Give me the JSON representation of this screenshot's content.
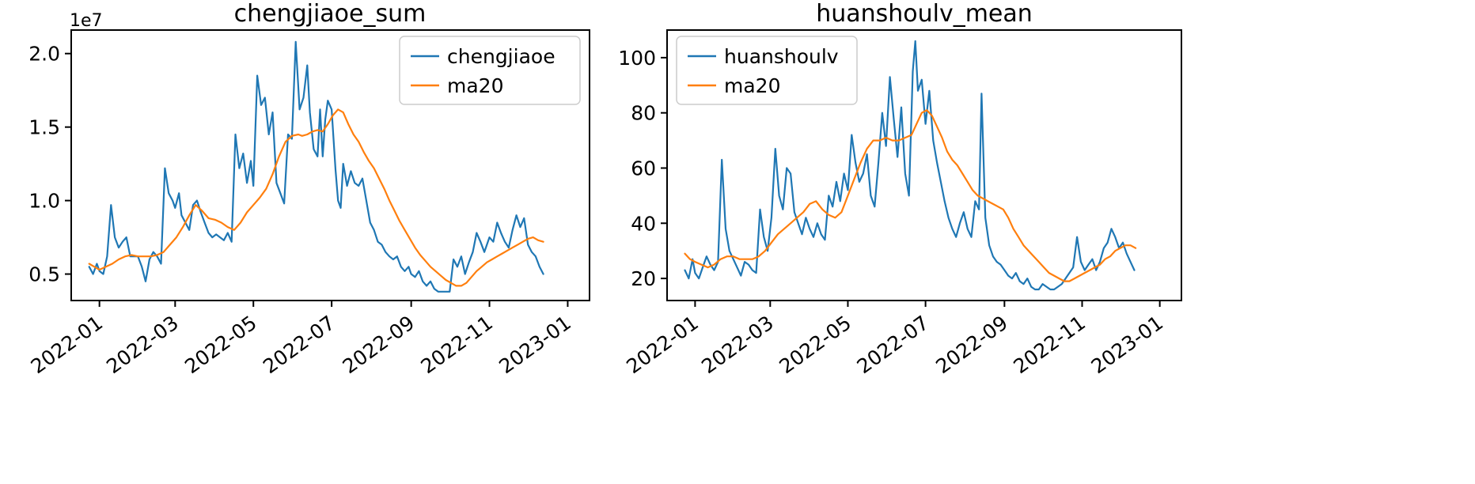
{
  "figure": {
    "background": "#ffffff"
  },
  "colors": {
    "blue": "#1f77b4",
    "orange": "#ff7f0e"
  },
  "chart_data": [
    {
      "type": "line",
      "title": "chengjiaoe_sum",
      "y_offset_label": "1e7",
      "y_unit": "1e7",
      "xlabel": "",
      "ylabel": "",
      "grid": false,
      "legend_loc": "upper-right",
      "xlim": [
        -22,
        382
      ],
      "ylim": [
        0.32,
        2.16
      ],
      "y_ticks": [
        0.5,
        1.0,
        1.5,
        2.0
      ],
      "y_tick_labels": [
        "0.5",
        "1.0",
        "1.5",
        "2.0"
      ],
      "x_ticks": [
        {
          "day": 0,
          "label": "2022-01"
        },
        {
          "day": 59,
          "label": "2022-03"
        },
        {
          "day": 120,
          "label": "2022-05"
        },
        {
          "day": 181,
          "label": "2022-07"
        },
        {
          "day": 243,
          "label": "2022-09"
        },
        {
          "day": 304,
          "label": "2022-11"
        },
        {
          "day": 365,
          "label": "2023-01"
        }
      ],
      "series": [
        {
          "name": "chengjiaoe",
          "color": "#1f77b4",
          "x": [
            -8,
            -5,
            -2,
            0,
            3,
            6,
            9,
            12,
            15,
            18,
            21,
            24,
            27,
            30,
            33,
            36,
            39,
            42,
            45,
            48,
            51,
            54,
            57,
            59,
            62,
            64,
            67,
            70,
            73,
            76,
            79,
            82,
            85,
            88,
            91,
            94,
            97,
            100,
            103,
            106,
            109,
            112,
            115,
            118,
            120,
            123,
            126,
            129,
            132,
            135,
            138,
            141,
            144,
            147,
            150,
            153,
            156,
            159,
            162,
            164,
            167,
            170,
            172,
            174,
            176,
            178,
            181,
            184,
            186,
            188,
            190,
            193,
            196,
            199,
            202,
            205,
            208,
            211,
            214,
            217,
            220,
            223,
            226,
            229,
            232,
            235,
            238,
            241,
            243,
            246,
            249,
            252,
            255,
            258,
            261,
            264,
            267,
            270,
            273,
            276,
            279,
            282,
            285,
            288,
            291,
            294,
            297,
            300,
            304,
            307,
            310,
            313,
            316,
            319,
            322,
            325,
            328,
            331,
            334,
            337,
            340,
            343,
            346
          ],
          "y": [
            0.55,
            0.5,
            0.57,
            0.52,
            0.5,
            0.62,
            0.97,
            0.75,
            0.68,
            0.72,
            0.75,
            0.62,
            0.62,
            0.62,
            0.55,
            0.45,
            0.6,
            0.65,
            0.62,
            0.57,
            1.22,
            1.05,
            1.0,
            0.95,
            1.05,
            0.9,
            0.85,
            0.8,
            0.97,
            1.0,
            0.92,
            0.85,
            0.78,
            0.75,
            0.77,
            0.75,
            0.73,
            0.78,
            0.72,
            1.45,
            1.22,
            1.32,
            1.12,
            1.27,
            1.1,
            1.85,
            1.65,
            1.7,
            1.45,
            1.6,
            1.12,
            1.05,
            0.98,
            1.45,
            1.42,
            2.08,
            1.62,
            1.7,
            1.92,
            1.6,
            1.35,
            1.3,
            1.62,
            1.3,
            1.55,
            1.68,
            1.62,
            1.21,
            1.0,
            0.95,
            1.25,
            1.1,
            1.2,
            1.12,
            1.1,
            1.15,
            1.0,
            0.85,
            0.8,
            0.72,
            0.7,
            0.65,
            0.62,
            0.6,
            0.62,
            0.55,
            0.52,
            0.55,
            0.5,
            0.48,
            0.52,
            0.45,
            0.42,
            0.45,
            0.4,
            0.38,
            0.38,
            0.38,
            0.38,
            0.6,
            0.55,
            0.62,
            0.5,
            0.58,
            0.65,
            0.78,
            0.72,
            0.65,
            0.75,
            0.72,
            0.85,
            0.78,
            0.72,
            0.68,
            0.8,
            0.9,
            0.82,
            0.88,
            0.7,
            0.65,
            0.62,
            0.55,
            0.5
          ]
        },
        {
          "name": "ma20",
          "color": "#ff7f0e",
          "x": [
            -8,
            -4,
            0,
            5,
            10,
            15,
            20,
            25,
            30,
            35,
            40,
            45,
            50,
            55,
            60,
            65,
            70,
            75,
            80,
            85,
            90,
            95,
            100,
            105,
            110,
            115,
            120,
            125,
            130,
            135,
            140,
            145,
            150,
            155,
            158,
            162,
            166,
            170,
            174,
            178,
            182,
            186,
            190,
            194,
            198,
            202,
            206,
            210,
            214,
            218,
            222,
            226,
            230,
            234,
            238,
            242,
            246,
            250,
            254,
            258,
            262,
            266,
            270,
            274,
            278,
            282,
            286,
            290,
            294,
            298,
            302,
            306,
            310,
            314,
            318,
            322,
            326,
            330,
            334,
            338,
            342,
            346
          ],
          "y": [
            0.57,
            0.55,
            0.53,
            0.55,
            0.57,
            0.6,
            0.62,
            0.63,
            0.62,
            0.62,
            0.62,
            0.63,
            0.65,
            0.7,
            0.75,
            0.82,
            0.9,
            0.97,
            0.93,
            0.88,
            0.87,
            0.85,
            0.82,
            0.8,
            0.85,
            0.92,
            0.97,
            1.02,
            1.08,
            1.18,
            1.3,
            1.4,
            1.44,
            1.45,
            1.44,
            1.45,
            1.47,
            1.48,
            1.47,
            1.52,
            1.58,
            1.62,
            1.6,
            1.52,
            1.45,
            1.4,
            1.33,
            1.27,
            1.22,
            1.15,
            1.08,
            1.0,
            0.93,
            0.86,
            0.8,
            0.74,
            0.68,
            0.63,
            0.59,
            0.55,
            0.52,
            0.49,
            0.46,
            0.44,
            0.42,
            0.42,
            0.44,
            0.48,
            0.52,
            0.55,
            0.58,
            0.6,
            0.62,
            0.64,
            0.66,
            0.68,
            0.7,
            0.72,
            0.74,
            0.75,
            0.73,
            0.72
          ]
        }
      ]
    },
    {
      "type": "line",
      "title": "huanshoulv_mean",
      "y_offset_label": "",
      "xlabel": "",
      "ylabel": "",
      "grid": false,
      "legend_loc": "upper-left",
      "xlim": [
        -22,
        382
      ],
      "ylim": [
        12,
        110
      ],
      "y_ticks": [
        20,
        40,
        60,
        80,
        100
      ],
      "y_tick_labels": [
        "20",
        "40",
        "60",
        "80",
        "100"
      ],
      "x_ticks": [
        {
          "day": 0,
          "label": "2022-01"
        },
        {
          "day": 59,
          "label": "2022-03"
        },
        {
          "day": 120,
          "label": "2022-05"
        },
        {
          "day": 181,
          "label": "2022-07"
        },
        {
          "day": 243,
          "label": "2022-09"
        },
        {
          "day": 304,
          "label": "2022-11"
        },
        {
          "day": 365,
          "label": "2023-01"
        }
      ],
      "series": [
        {
          "name": "huanshoulv",
          "color": "#1f77b4",
          "x": [
            -8,
            -5,
            -2,
            0,
            3,
            6,
            9,
            12,
            15,
            18,
            21,
            24,
            27,
            30,
            33,
            36,
            39,
            42,
            45,
            48,
            51,
            54,
            57,
            60,
            63,
            66,
            69,
            72,
            75,
            78,
            81,
            84,
            87,
            90,
            93,
            96,
            99,
            102,
            105,
            108,
            111,
            114,
            117,
            120,
            123,
            126,
            129,
            132,
            135,
            138,
            141,
            144,
            147,
            150,
            153,
            156,
            159,
            162,
            165,
            168,
            171,
            173,
            175,
            178,
            181,
            184,
            187,
            190,
            193,
            196,
            199,
            202,
            205,
            208,
            211,
            214,
            217,
            220,
            223,
            225,
            228,
            231,
            234,
            237,
            240,
            243,
            246,
            249,
            252,
            255,
            258,
            261,
            264,
            267,
            270,
            273,
            276,
            279,
            282,
            285,
            288,
            291,
            294,
            297,
            300,
            303,
            306,
            309,
            312,
            315,
            318,
            321,
            324,
            327,
            330,
            333,
            336,
            339,
            342,
            345
          ],
          "y": [
            23,
            20,
            27,
            22,
            20,
            24,
            28,
            25,
            23,
            26,
            63,
            38,
            30,
            27,
            24,
            21,
            26,
            25,
            23,
            22,
            45,
            35,
            30,
            42,
            67,
            50,
            45,
            60,
            58,
            44,
            40,
            36,
            42,
            38,
            35,
            40,
            36,
            34,
            50,
            46,
            55,
            48,
            58,
            52,
            72,
            62,
            55,
            58,
            65,
            50,
            46,
            62,
            80,
            68,
            93,
            78,
            64,
            82,
            58,
            50,
            95,
            106,
            88,
            92,
            76,
            88,
            70,
            62,
            55,
            48,
            42,
            38,
            35,
            40,
            44,
            38,
            35,
            48,
            45,
            87,
            42,
            32,
            28,
            26,
            25,
            23,
            21,
            20,
            22,
            19,
            18,
            20,
            17,
            16,
            16,
            18,
            17,
            16,
            16,
            17,
            18,
            20,
            22,
            24,
            35,
            26,
            23,
            25,
            27,
            23,
            26,
            31,
            33,
            38,
            35,
            31,
            33,
            29,
            26,
            23
          ]
        },
        {
          "name": "ma20",
          "color": "#ff7f0e",
          "x": [
            -8,
            -4,
            0,
            5,
            10,
            15,
            20,
            25,
            30,
            35,
            40,
            45,
            50,
            55,
            60,
            65,
            70,
            75,
            80,
            85,
            90,
            95,
            100,
            105,
            110,
            115,
            120,
            125,
            130,
            135,
            140,
            145,
            150,
            155,
            160,
            165,
            170,
            174,
            178,
            182,
            186,
            190,
            194,
            198,
            202,
            206,
            210,
            214,
            218,
            222,
            226,
            230,
            234,
            238,
            242,
            246,
            250,
            254,
            258,
            262,
            266,
            270,
            274,
            278,
            282,
            286,
            290,
            294,
            298,
            302,
            306,
            310,
            314,
            318,
            322,
            326,
            330,
            334,
            338,
            342,
            346
          ],
          "y": [
            29,
            27,
            26,
            25,
            24,
            25,
            27,
            28,
            28,
            27,
            27,
            27,
            28,
            30,
            33,
            36,
            38,
            40,
            42,
            44,
            47,
            48,
            45,
            43,
            42,
            44,
            50,
            56,
            62,
            67,
            70,
            70,
            71,
            70,
            70,
            71,
            72,
            76,
            80,
            81,
            79,
            75,
            71,
            66,
            63,
            61,
            58,
            55,
            52,
            50,
            49,
            48,
            47,
            46,
            45,
            42,
            38,
            35,
            32,
            30,
            28,
            26,
            24,
            22,
            21,
            20,
            19,
            19,
            20,
            21,
            22,
            23,
            24,
            25,
            27,
            28,
            30,
            31,
            32,
            32,
            31
          ]
        }
      ]
    }
  ]
}
